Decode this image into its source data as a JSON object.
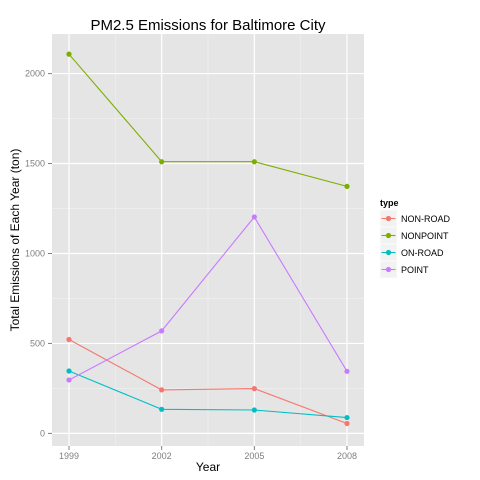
{
  "chart_data": {
    "type": "line",
    "title": "PM2.5 Emissions for Baltimore City",
    "xlabel": "Year",
    "ylabel": "Total Emissions of Each Year (ton)",
    "x": [
      1999,
      2002,
      2005,
      2008
    ],
    "x_ticks": [
      "1999",
      "2002",
      "2005",
      "2008"
    ],
    "y_ticks": [
      0,
      500,
      1000,
      1500,
      2000
    ],
    "ylim": [
      -70,
      2220
    ],
    "grid": true,
    "legend_title": "type",
    "legend_position": "right",
    "series": [
      {
        "name": "NON-ROAD",
        "color": "#F8766D",
        "values": [
          522,
          242,
          249,
          55
        ]
      },
      {
        "name": "NONPOINT",
        "color": "#7CAE00",
        "values": [
          2108,
          1510,
          1510,
          1373
        ]
      },
      {
        "name": "ON-ROAD",
        "color": "#00BFC4",
        "values": [
          347,
          134,
          130,
          88
        ]
      },
      {
        "name": "POINT",
        "color": "#C77CFF",
        "values": [
          297,
          570,
          1203,
          345
        ]
      }
    ]
  }
}
